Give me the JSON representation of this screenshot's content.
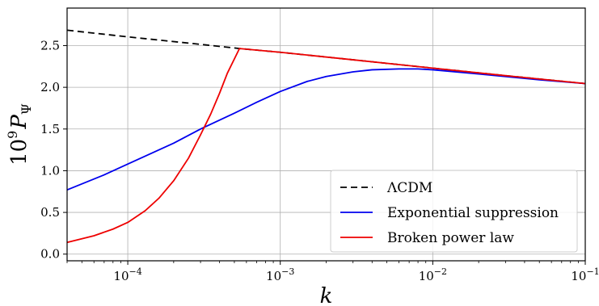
{
  "chart_data": {
    "type": "line",
    "title": "",
    "xlabel": "k",
    "ylabel_base": "10",
    "ylabel_exp": "9",
    "ylabel_symbol": "P",
    "ylabel_sub": "Ψ",
    "xscale": "log",
    "xlim": [
      4e-05,
      0.1
    ],
    "ylim": [
      -0.08,
      2.95
    ],
    "grid": true,
    "legend_position": "lower-right",
    "x_ticks": [
      {
        "value": 0.0001,
        "mantissa": "10",
        "exp": "−4"
      },
      {
        "value": 0.001,
        "mantissa": "10",
        "exp": "−3"
      },
      {
        "value": 0.01,
        "mantissa": "10",
        "exp": "−2"
      },
      {
        "value": 0.1,
        "mantissa": "10",
        "exp": "−1"
      }
    ],
    "y_ticks": [
      {
        "value": 0.0,
        "label": "0.0"
      },
      {
        "value": 0.5,
        "label": "0.5"
      },
      {
        "value": 1.0,
        "label": "1.0"
      },
      {
        "value": 1.5,
        "label": "1.5"
      },
      {
        "value": 2.0,
        "label": "2.0"
      },
      {
        "value": 2.5,
        "label": "2.5"
      }
    ],
    "series": [
      {
        "name": "ΛCDM",
        "color": "#000000",
        "dash": "8,5",
        "x": [
          4e-05,
          0.0001,
          0.0003,
          0.00054,
          0.001,
          0.003,
          0.01,
          0.03,
          0.1
        ],
        "y": [
          2.685,
          2.605,
          2.515,
          2.465,
          2.42,
          2.33,
          2.23,
          2.14,
          2.045
        ]
      },
      {
        "name": "Exponential suppression",
        "color": "#0000ee",
        "dash": "",
        "x": [
          4e-05,
          7e-05,
          0.0001,
          0.0002,
          0.0003,
          0.0005,
          0.0007,
          0.001,
          0.0015,
          0.002,
          0.003,
          0.004,
          0.006,
          0.008,
          0.01,
          0.02,
          0.05,
          0.1
        ],
        "y": [
          0.77,
          0.95,
          1.08,
          1.33,
          1.5,
          1.69,
          1.82,
          1.95,
          2.07,
          2.13,
          2.185,
          2.21,
          2.22,
          2.22,
          2.21,
          2.16,
          2.09,
          2.045
        ]
      },
      {
        "name": "Broken power law",
        "color": "#ee0000",
        "dash": "",
        "x": [
          4e-05,
          6e-05,
          8e-05,
          0.0001,
          0.00013,
          0.00016,
          0.0002,
          0.00025,
          0.0003,
          0.00035,
          0.0004,
          0.00045,
          0.0005,
          0.00054,
          0.001,
          0.003,
          0.01,
          0.03,
          0.1
        ],
        "y": [
          0.14,
          0.22,
          0.3,
          0.38,
          0.52,
          0.67,
          0.88,
          1.15,
          1.43,
          1.68,
          1.93,
          2.17,
          2.34,
          2.465,
          2.42,
          2.33,
          2.23,
          2.14,
          2.045
        ]
      }
    ]
  }
}
